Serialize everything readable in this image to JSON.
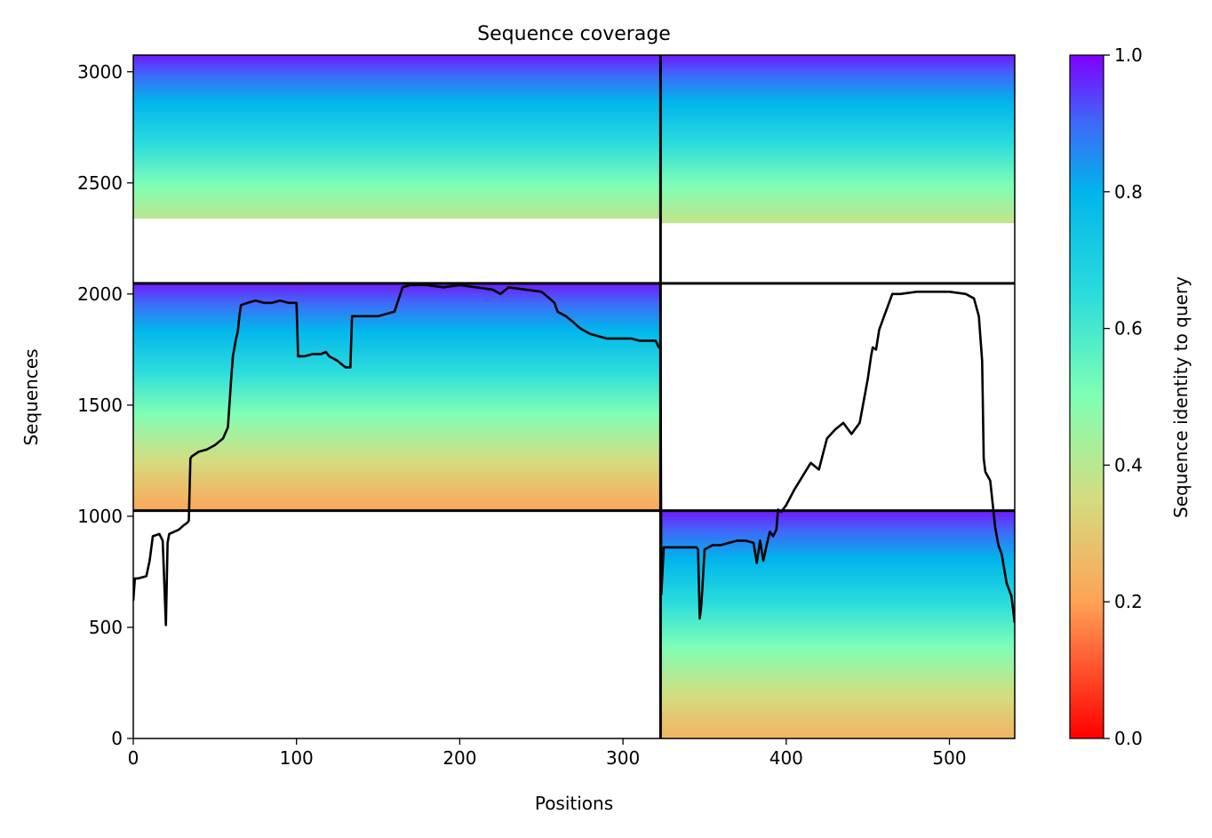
{
  "chart_data": {
    "type": "heatmap",
    "title": "Sequence coverage",
    "xlabel": "Positions",
    "ylabel": "Sequences",
    "xlim": [
      0,
      540
    ],
    "ylim": [
      0,
      3075
    ],
    "x_ticks": [
      0,
      100,
      200,
      300,
      400,
      500
    ],
    "y_ticks": [
      0,
      500,
      1000,
      1500,
      2000,
      2500,
      3000
    ],
    "colorbar": {
      "label": "Sequence identity to query",
      "range": [
        0,
        1
      ],
      "ticks": [
        0.0,
        0.2,
        0.4,
        0.6,
        0.8,
        1.0
      ],
      "colormap": "rainbow_r",
      "stops": [
        {
          "v": 0.0,
          "color": "#ff0000"
        },
        {
          "v": 0.2,
          "color": "#ffa256"
        },
        {
          "v": 0.35,
          "color": "#d4dc7f"
        },
        {
          "v": 0.5,
          "color": "#80ffb4"
        },
        {
          "v": 0.65,
          "color": "#2adcdd"
        },
        {
          "v": 0.8,
          "color": "#00b5eb"
        },
        {
          "v": 0.9,
          "color": "#3d6af9"
        },
        {
          "v": 1.0,
          "color": "#8000ff"
        }
      ]
    },
    "chain_boundaries": {
      "x": [
        323
      ],
      "y": [
        1025,
        2048
      ]
    },
    "blocks": [
      {
        "x": [
          0,
          323
        ],
        "y": [
          2048,
          3075
        ],
        "id_bottom": 0.22,
        "id_top": 0.98,
        "coverage_start_row": 2340
      },
      {
        "x": [
          323,
          540
        ],
        "y": [
          2048,
          3075
        ],
        "id_bottom": 0.22,
        "id_top": 0.98,
        "coverage_start_row": 2320
      },
      {
        "x": [
          0,
          323
        ],
        "y": [
          1025,
          2048
        ],
        "id_bottom": 0.22,
        "id_top": 0.98,
        "coverage_start_row": 1025
      },
      {
        "x": [
          323,
          540
        ],
        "y": [
          0,
          1025
        ],
        "id_bottom": 0.25,
        "id_top": 0.98,
        "coverage_start_row": 0
      }
    ],
    "coverage_line": {
      "x": [
        0,
        1,
        3,
        8,
        10,
        12,
        16,
        18,
        20,
        21,
        22,
        28,
        31,
        33,
        34,
        35,
        36,
        40,
        45,
        50,
        55,
        58,
        60,
        61,
        62,
        63,
        64,
        65,
        66,
        70,
        75,
        80,
        85,
        90,
        95,
        100,
        101,
        105,
        110,
        115,
        118,
        120,
        125,
        130,
        133,
        134,
        135,
        140,
        150,
        160,
        165,
        170,
        180,
        190,
        200,
        210,
        220,
        225,
        230,
        240,
        250,
        255,
        258,
        260,
        265,
        270,
        273,
        275,
        280,
        285,
        290,
        295,
        300,
        305,
        310,
        315,
        320,
        322,
        323,
        323.5,
        325,
        330,
        335,
        340,
        345,
        346,
        347,
        348,
        350,
        355,
        360,
        365,
        370,
        375,
        380,
        382,
        384,
        386,
        388,
        390,
        392,
        394,
        395,
        397,
        400,
        405,
        410,
        415,
        420,
        425,
        430,
        435,
        440,
        445,
        450,
        452,
        453,
        455,
        457,
        460,
        465,
        470,
        480,
        490,
        500,
        510,
        515,
        518,
        520,
        521,
        522,
        525,
        528,
        530,
        532,
        535,
        538,
        540
      ],
      "y": [
        620,
        720,
        720,
        730,
        800,
        910,
        920,
        890,
        510,
        880,
        920,
        940,
        960,
        970,
        980,
        1260,
        1270,
        1290,
        1300,
        1320,
        1350,
        1400,
        1620,
        1720,
        1760,
        1800,
        1830,
        1900,
        1950,
        1960,
        1970,
        1960,
        1960,
        1970,
        1960,
        1960,
        1720,
        1720,
        1730,
        1730,
        1740,
        1720,
        1700,
        1670,
        1670,
        1900,
        1900,
        1900,
        1900,
        1920,
        2030,
        2040,
        2040,
        2030,
        2040,
        2030,
        2020,
        2000,
        2030,
        2020,
        2010,
        1980,
        1960,
        1920,
        1900,
        1870,
        1850,
        1840,
        1820,
        1810,
        1800,
        1800,
        1800,
        1800,
        1790,
        1790,
        1790,
        1760,
        1760,
        650,
        860,
        860,
        860,
        860,
        860,
        850,
        540,
        600,
        850,
        870,
        870,
        880,
        890,
        890,
        880,
        790,
        890,
        800,
        870,
        930,
        910,
        940,
        1030,
        1020,
        1050,
        1120,
        1180,
        1240,
        1210,
        1350,
        1390,
        1420,
        1370,
        1420,
        1620,
        1720,
        1760,
        1750,
        1840,
        1900,
        2000,
        2000,
        2010,
        2010,
        2010,
        2000,
        1980,
        1900,
        1700,
        1260,
        1200,
        1160,
        950,
        870,
        830,
        700,
        640,
        520
      ]
    }
  }
}
